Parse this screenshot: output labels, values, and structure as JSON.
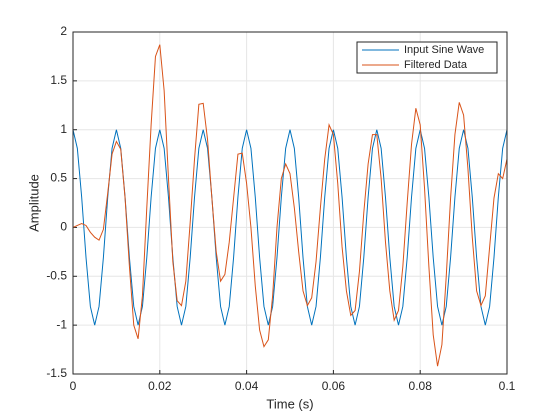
{
  "chart_data": {
    "type": "line",
    "xlabel": "Time (s)",
    "ylabel": "Amplitude",
    "xlim": [
      0,
      0.1
    ],
    "ylim": [
      -1.5,
      2
    ],
    "xticks": [
      0,
      0.02,
      0.04,
      0.06,
      0.08,
      0.1
    ],
    "yticks": [
      -1.5,
      -1,
      -0.5,
      0,
      0.5,
      1,
      1.5,
      2
    ],
    "grid": true,
    "legend": "northeast",
    "x": [
      0,
      0.001,
      0.002,
      0.003,
      0.004,
      0.005,
      0.006,
      0.007,
      0.008,
      0.009,
      0.01,
      0.011,
      0.012,
      0.013,
      0.014,
      0.015,
      0.016,
      0.017,
      0.018,
      0.019,
      0.02,
      0.021,
      0.022,
      0.023,
      0.024,
      0.025,
      0.026,
      0.027,
      0.028,
      0.029,
      0.03,
      0.031,
      0.032,
      0.033,
      0.034,
      0.035,
      0.036,
      0.037,
      0.038,
      0.039,
      0.04,
      0.041,
      0.042,
      0.043,
      0.044,
      0.045,
      0.046,
      0.047,
      0.048,
      0.049,
      0.05,
      0.051,
      0.052,
      0.053,
      0.054,
      0.055,
      0.056,
      0.057,
      0.058,
      0.059,
      0.06,
      0.061,
      0.062,
      0.063,
      0.064,
      0.065,
      0.066,
      0.067,
      0.068,
      0.069,
      0.07,
      0.071,
      0.072,
      0.073,
      0.074,
      0.075,
      0.076,
      0.077,
      0.078,
      0.079,
      0.08,
      0.081,
      0.082,
      0.083,
      0.084,
      0.085,
      0.086,
      0.087,
      0.088,
      0.089,
      0.09,
      0.091,
      0.092,
      0.093,
      0.094,
      0.095,
      0.096,
      0.097,
      0.098,
      0.099,
      0.1
    ],
    "series": [
      {
        "name": "Input Sine Wave",
        "color": "#0072bd",
        "values": [
          1,
          0.809,
          0.309,
          -0.309,
          -0.809,
          -1,
          -0.809,
          -0.309,
          0.309,
          0.809,
          1,
          0.809,
          0.309,
          -0.309,
          -0.809,
          -1,
          -0.809,
          -0.309,
          0.309,
          0.809,
          1,
          0.809,
          0.309,
          -0.309,
          -0.809,
          -1,
          -0.809,
          -0.309,
          0.309,
          0.809,
          1,
          0.809,
          0.309,
          -0.309,
          -0.809,
          -1,
          -0.809,
          -0.309,
          0.309,
          0.809,
          1,
          0.809,
          0.309,
          -0.309,
          -0.809,
          -1,
          -0.809,
          -0.309,
          0.309,
          0.809,
          1,
          0.809,
          0.309,
          -0.309,
          -0.809,
          -1,
          -0.809,
          -0.309,
          0.309,
          0.809,
          1,
          0.809,
          0.309,
          -0.309,
          -0.809,
          -1,
          -0.809,
          -0.309,
          0.309,
          0.809,
          1,
          0.809,
          0.309,
          -0.309,
          -0.809,
          -1,
          -0.809,
          -0.309,
          0.309,
          0.809,
          1,
          0.809,
          0.309,
          -0.309,
          -0.809,
          -1,
          -0.809,
          -0.309,
          0.309,
          0.809,
          1,
          0.809,
          0.309,
          -0.309,
          -0.809,
          -1,
          -0.809,
          -0.309,
          0.309,
          0.809,
          1
        ]
      },
      {
        "name": "Filtered Data",
        "color": "#d95319",
        "values": [
          0,
          0.02,
          0.04,
          0.02,
          -0.05,
          -0.1,
          -0.13,
          -0.02,
          0.35,
          0.75,
          0.88,
          0.8,
          0.3,
          -0.4,
          -1.0,
          -1.14,
          -0.7,
          0.2,
          1.05,
          1.75,
          1.87,
          1.4,
          0.5,
          -0.35,
          -0.75,
          -0.8,
          -0.55,
          0.05,
          0.7,
          1.26,
          1.27,
          0.9,
          0.3,
          -0.25,
          -0.55,
          -0.48,
          -0.15,
          0.3,
          0.75,
          0.76,
          0.45,
          0.0,
          -0.6,
          -1.05,
          -1.22,
          -1.15,
          -0.7,
          0.0,
          0.5,
          0.65,
          0.55,
          0.2,
          -0.25,
          -0.65,
          -0.8,
          -0.72,
          -0.35,
          0.2,
          0.7,
          1.05,
          0.95,
          0.45,
          -0.2,
          -0.65,
          -0.9,
          -0.85,
          -0.45,
          0.15,
          0.65,
          0.95,
          0.95,
          0.5,
          -0.15,
          -0.65,
          -0.95,
          -0.85,
          -0.4,
          0.25,
          0.85,
          1.22,
          1.05,
          0.4,
          -0.4,
          -1.1,
          -1.42,
          -1.2,
          -0.5,
          0.3,
          0.95,
          1.28,
          1.15,
          0.6,
          -0.1,
          -0.65,
          -0.8,
          -0.7,
          -0.2,
          0.3,
          0.55,
          0.5,
          0.7
        ]
      }
    ]
  }
}
